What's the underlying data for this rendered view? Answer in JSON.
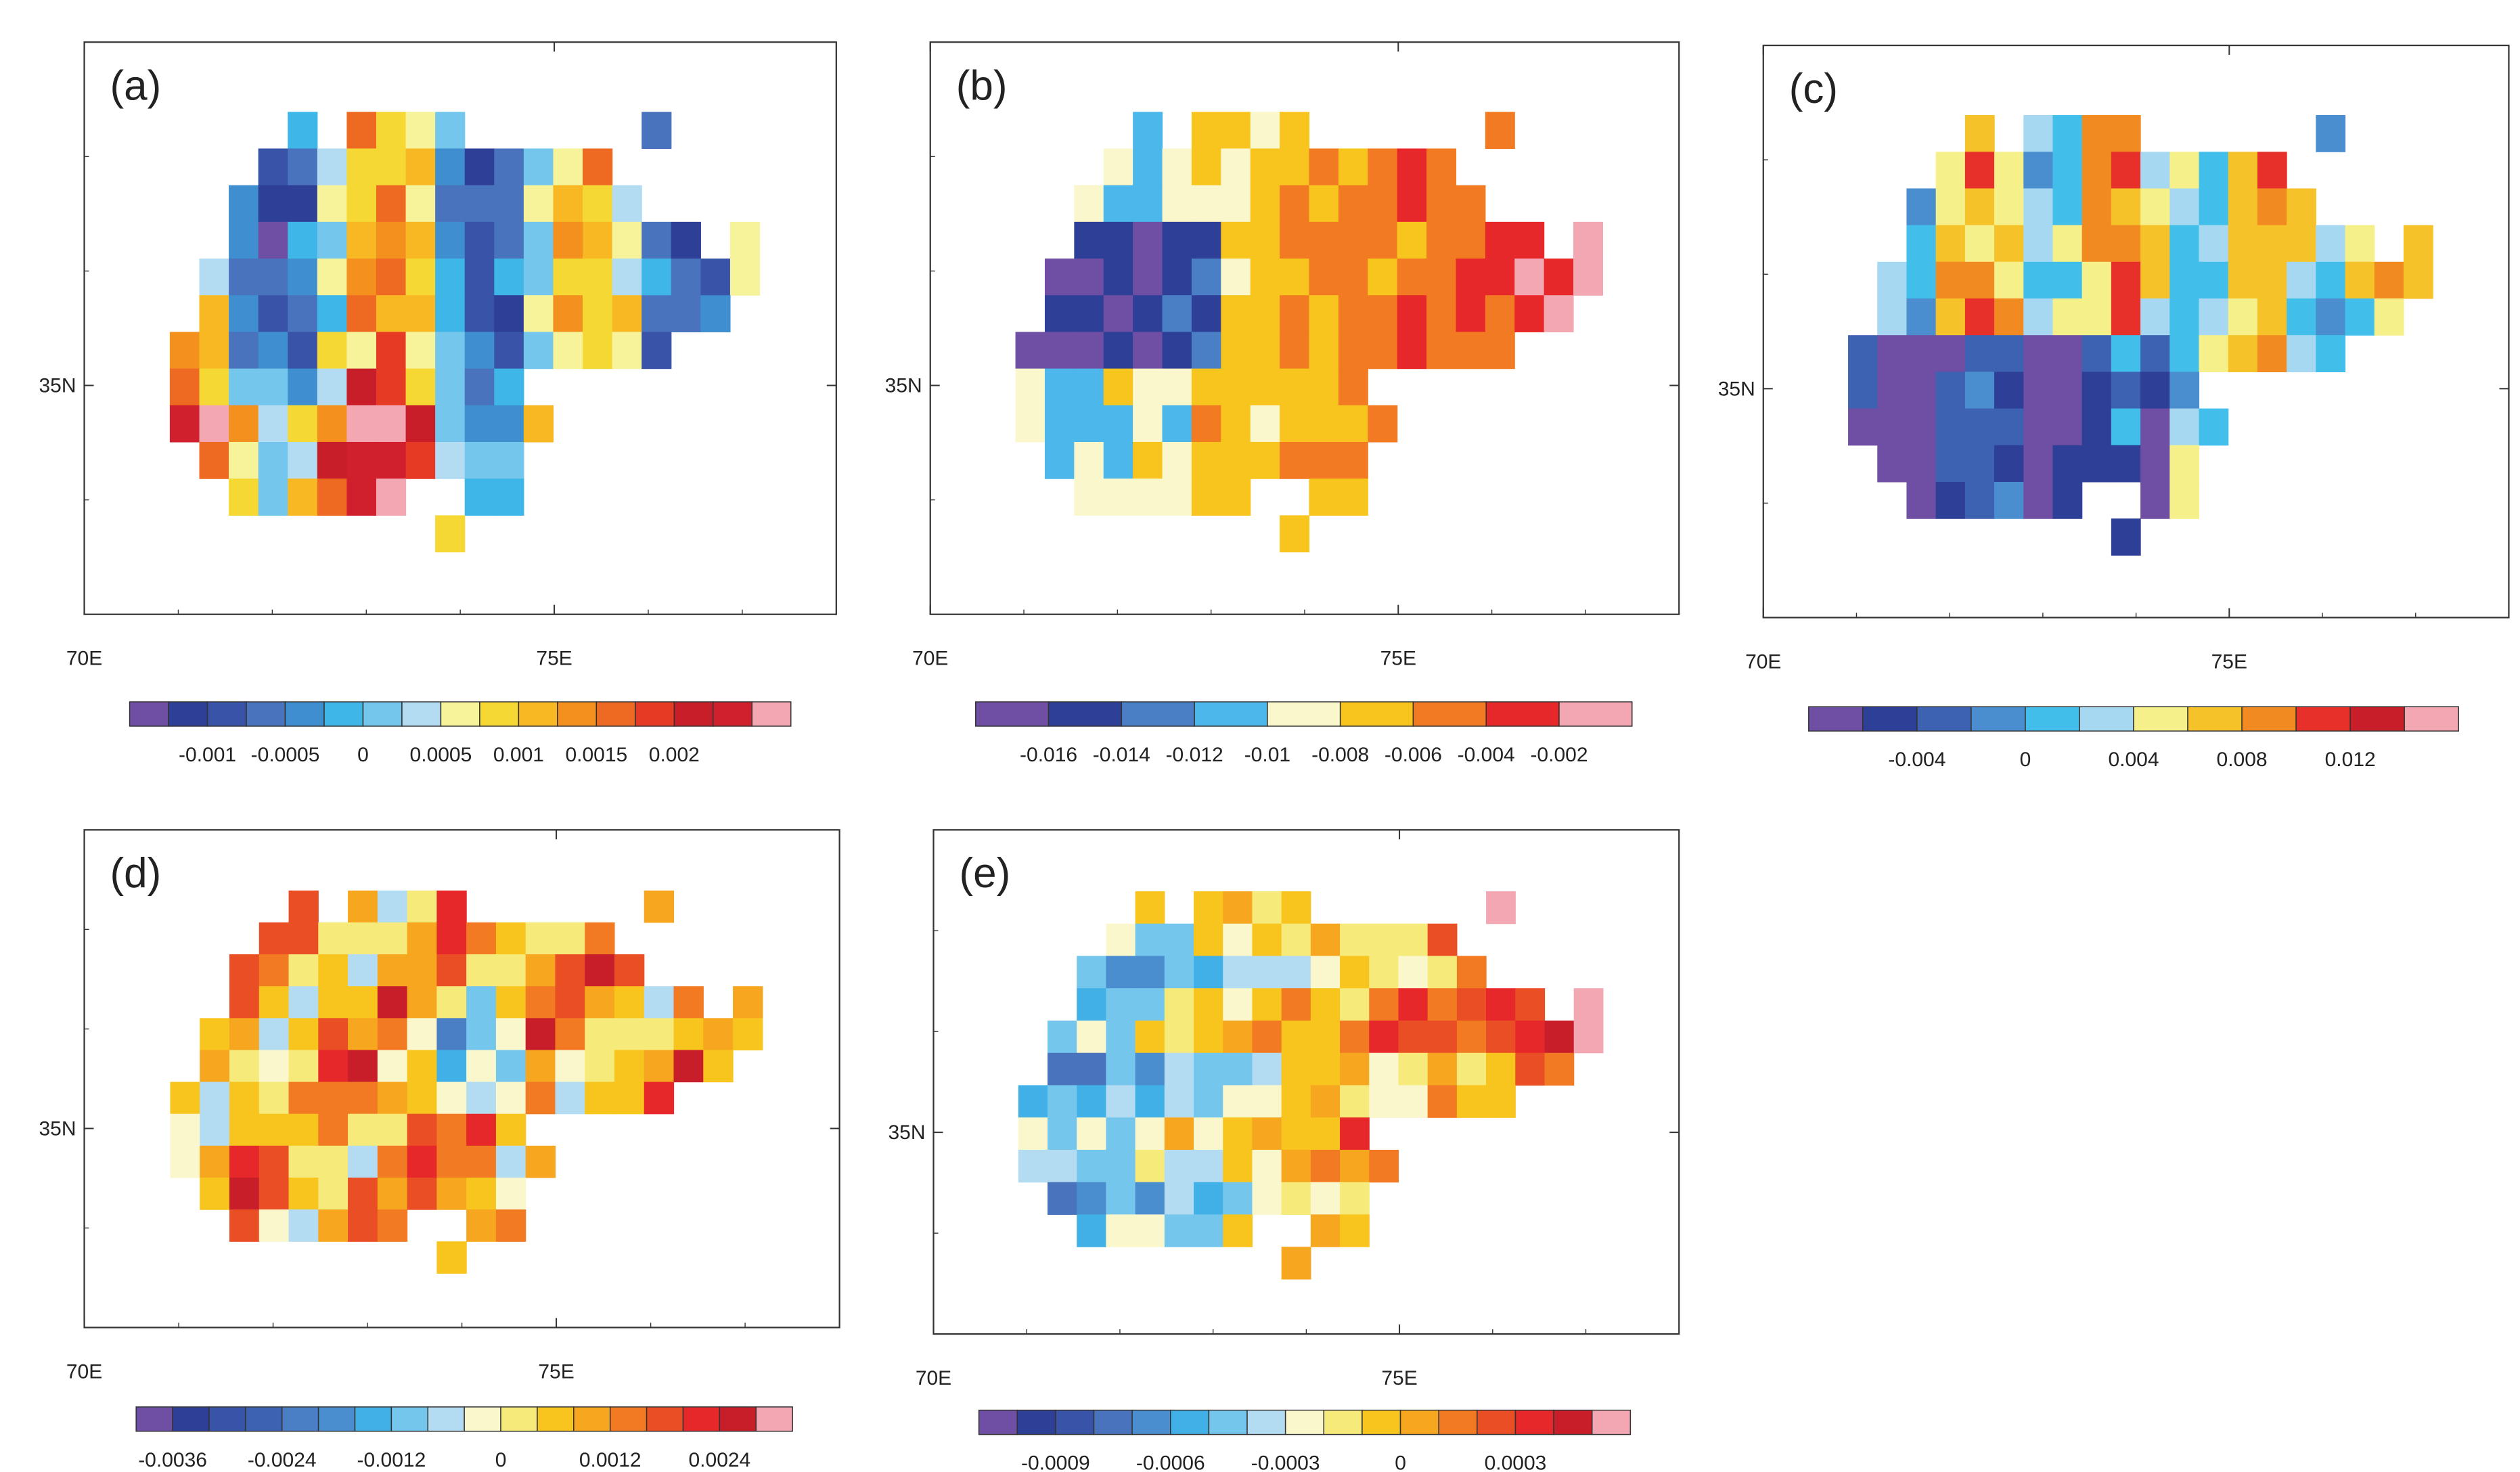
{
  "chart_data": [
    {
      "type": "heatmap",
      "panel_label": "(a)",
      "x_ticks": [
        {
          "value": 70,
          "label": "70E"
        },
        {
          "value": 75,
          "label": "75E"
        }
      ],
      "y_ticks": [
        {
          "value": 35,
          "label": "35N"
        }
      ],
      "colorbar": {
        "colors": [
          "#6f4fa3",
          "#2e3f98",
          "#3853a8",
          "#4a73bd",
          "#3f8fd0",
          "#3fb6e8",
          "#74c6ec",
          "#b3dcf2",
          "#f6f39a",
          "#f6d835",
          "#f8b823",
          "#f3901e",
          "#ee6a22",
          "#e63a24",
          "#c81e2a",
          "#d01f2d",
          "#f3a7b3"
        ],
        "tick_labels": [
          "-0.001",
          "-0.0005",
          "0",
          "0.0005",
          "0.001",
          "0.0015",
          "0.002"
        ],
        "tick_boundaries": [
          2,
          4,
          6,
          8,
          10,
          12,
          14
        ]
      },
      "field_pattern": "mixed"
    },
    {
      "type": "heatmap",
      "panel_label": "(b)",
      "x_ticks": [
        {
          "value": 70,
          "label": "70E"
        },
        {
          "value": 75,
          "label": "75E"
        }
      ],
      "y_ticks": [
        {
          "value": 35,
          "label": "35N"
        }
      ],
      "colorbar": {
        "colors": [
          "#6f4fa3",
          "#2e3f98",
          "#4a7fc6",
          "#4bb7ea",
          "#faf7cc",
          "#f8c41e",
          "#f17a22",
          "#e7282a",
          "#f3a7b3"
        ],
        "tick_labels": [
          "-0.016",
          "-0.014",
          "-0.012",
          "-0.01",
          "-0.008",
          "-0.006",
          "-0.004",
          "-0.002"
        ],
        "tick_boundaries": [
          1,
          2,
          3,
          4,
          5,
          6,
          7,
          8
        ]
      },
      "field_pattern": "warm-east"
    },
    {
      "type": "heatmap",
      "panel_label": "(c)",
      "x_ticks": [
        {
          "value": 70,
          "label": "70E"
        },
        {
          "value": 75,
          "label": "75E"
        }
      ],
      "y_ticks": [
        {
          "value": 35,
          "label": "35N"
        }
      ],
      "colorbar": {
        "colors": [
          "#6f4fa3",
          "#2e3f98",
          "#3d62b2",
          "#4a8ed0",
          "#41bfea",
          "#a6d9f1",
          "#f6f08a",
          "#f6c22a",
          "#f28a22",
          "#e7302a",
          "#c81e2a",
          "#f3a7b3"
        ],
        "tick_labels": [
          "-0.004",
          "0",
          "0.004",
          "0.008",
          "0.012"
        ],
        "tick_boundaries": [
          2,
          4,
          6,
          8,
          10
        ]
      },
      "field_pattern": "cool-southwest"
    },
    {
      "type": "heatmap",
      "panel_label": "(d)",
      "x_ticks": [
        {
          "value": 70,
          "label": "70E"
        },
        {
          "value": 75,
          "label": "75E"
        }
      ],
      "y_ticks": [
        {
          "value": 35,
          "label": "35N"
        }
      ],
      "colorbar": {
        "colors": [
          "#6f4fa3",
          "#2e3f98",
          "#3853a8",
          "#3d62b2",
          "#4a7fc6",
          "#4a8ed0",
          "#41b0e6",
          "#74c6ec",
          "#b3dcf2",
          "#faf7cc",
          "#f6ea7a",
          "#f8c41e",
          "#f6a61f",
          "#f17a22",
          "#ea4e24",
          "#e7282a",
          "#c81e2a",
          "#f3a7b3"
        ],
        "tick_labels": [
          "-0.0036",
          "-0.0024",
          "-0.0012",
          "0",
          "0.0012",
          "0.0024"
        ],
        "tick_boundaries": [
          1,
          4,
          7,
          10,
          13,
          16
        ]
      },
      "field_pattern": "warm-mixed"
    },
    {
      "type": "heatmap",
      "panel_label": "(e)",
      "x_ticks": [
        {
          "value": 70,
          "label": "70E"
        },
        {
          "value": 75,
          "label": "75E"
        }
      ],
      "y_ticks": [
        {
          "value": 35,
          "label": "35N"
        }
      ],
      "colorbar": {
        "colors": [
          "#6f4fa3",
          "#2e3f98",
          "#3853a8",
          "#4a73bd",
          "#4a8ed0",
          "#41b0e6",
          "#74c6ec",
          "#b3dcf2",
          "#faf7cc",
          "#f6ea7a",
          "#f8c41e",
          "#f6a61f",
          "#f17a22",
          "#ea4e24",
          "#e7282a",
          "#c81e2a",
          "#f3a7b3"
        ],
        "tick_labels": [
          "-0.0009",
          "-0.0006",
          "-0.0003",
          "0",
          "0.0003"
        ],
        "tick_boundaries": [
          2,
          5,
          8,
          11,
          14
        ]
      },
      "field_pattern": "cool-west-warm-east"
    }
  ]
}
